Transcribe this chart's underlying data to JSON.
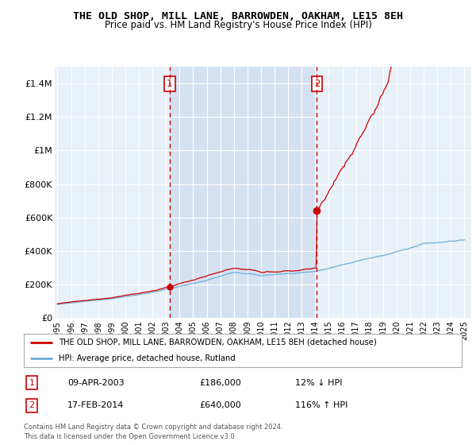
{
  "title": "THE OLD SHOP, MILL LANE, BARROWDEN, OAKHAM, LE15 8EH",
  "subtitle": "Price paid vs. HM Land Registry's House Price Index (HPI)",
  "ylim": [
    0,
    1500000
  ],
  "yticks": [
    0,
    200000,
    400000,
    600000,
    800000,
    1000000,
    1200000,
    1400000
  ],
  "ytick_labels": [
    "£0",
    "£200K",
    "£400K",
    "£600K",
    "£800K",
    "£1M",
    "£1.2M",
    "£1.4M"
  ],
  "x_start_year": 1995,
  "x_end_year": 2025,
  "hpi_color": "#6baed6",
  "property_color": "#cc0000",
  "vline_color": "#cc0000",
  "shade_color": "#dce6f1",
  "transaction1_year": 2003.27,
  "transaction1_value": 186000,
  "transaction2_year": 2014.12,
  "transaction2_value": 640000,
  "legend_property_label": "THE OLD SHOP, MILL LANE, BARROWDEN, OAKHAM, LE15 8EH (detached house)",
  "legend_hpi_label": "HPI: Average price, detached house, Rutland",
  "annotation1_label": "1",
  "annotation1_date": "09-APR-2003",
  "annotation1_price": "£186,000",
  "annotation1_hpi": "12% ↓ HPI",
  "annotation2_label": "2",
  "annotation2_date": "17-FEB-2014",
  "annotation2_price": "£640,000",
  "annotation2_hpi": "116% ↑ HPI",
  "footer": "Contains HM Land Registry data © Crown copyright and database right 2024.\nThis data is licensed under the Open Government Licence v3.0.",
  "background_color": "#ffffff",
  "plot_bg_color": "#e8f0f8",
  "grid_color": "#ffffff"
}
